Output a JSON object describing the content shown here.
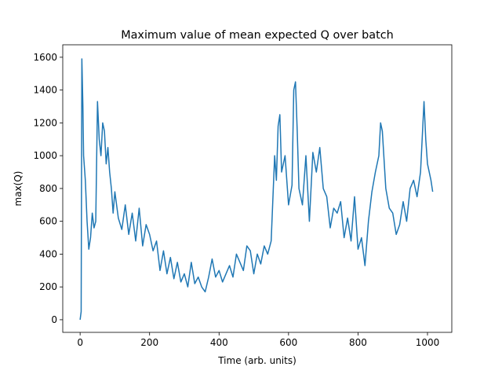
{
  "chart_data": {
    "type": "line",
    "title": "Maximum value of mean expected Q over batch",
    "x_label": "Time (arb. units)",
    "y_label": "max(Q)",
    "x": [
      0,
      3,
      5,
      8,
      10,
      15,
      20,
      25,
      30,
      35,
      40,
      45,
      50,
      55,
      60,
      65,
      70,
      75,
      80,
      85,
      90,
      95,
      100,
      110,
      120,
      130,
      140,
      150,
      160,
      170,
      180,
      190,
      200,
      210,
      220,
      230,
      240,
      250,
      260,
      270,
      280,
      290,
      300,
      310,
      320,
      330,
      340,
      350,
      360,
      370,
      380,
      390,
      400,
      410,
      420,
      430,
      440,
      450,
      460,
      470,
      480,
      490,
      500,
      510,
      520,
      530,
      540,
      550,
      560,
      565,
      570,
      575,
      580,
      590,
      600,
      610,
      615,
      620,
      625,
      630,
      640,
      650,
      660,
      670,
      680,
      690,
      700,
      710,
      720,
      730,
      740,
      750,
      760,
      770,
      780,
      790,
      800,
      810,
      820,
      830,
      840,
      850,
      860,
      865,
      870,
      880,
      890,
      900,
      910,
      920,
      930,
      940,
      950,
      960,
      970,
      980,
      990,
      995,
      1000,
      1010,
      1015
    ],
    "series": [
      {
        "name": "max(Q)",
        "color": "#1f77b4",
        "values": [
          0,
          50,
          1590,
          1300,
          1000,
          850,
          600,
          430,
          500,
          650,
          560,
          600,
          1330,
          1100,
          1000,
          1200,
          1150,
          950,
          1050,
          900,
          800,
          650,
          780,
          620,
          550,
          700,
          520,
          650,
          480,
          680,
          450,
          580,
          520,
          420,
          480,
          300,
          420,
          280,
          380,
          250,
          350,
          230,
          280,
          200,
          350,
          220,
          260,
          200,
          170,
          260,
          370,
          260,
          300,
          230,
          280,
          330,
          260,
          400,
          350,
          300,
          450,
          420,
          280,
          400,
          340,
          450,
          400,
          480,
          1000,
          850,
          1180,
          1250,
          900,
          1000,
          700,
          820,
          1400,
          1450,
          1150,
          800,
          700,
          1000,
          600,
          1020,
          900,
          1050,
          800,
          750,
          560,
          680,
          650,
          720,
          500,
          620,
          480,
          750,
          430,
          500,
          330,
          600,
          780,
          900,
          1000,
          1200,
          1150,
          800,
          680,
          650,
          520,
          580,
          720,
          600,
          800,
          850,
          750,
          900,
          1330,
          1100,
          950,
          850,
          780
        ]
      }
    ],
    "xlim": [
      -50,
      1070
    ],
    "ylim": [
      -77,
      1676
    ],
    "xticks": [
      0,
      200,
      400,
      600,
      800,
      1000
    ],
    "yticks": [
      0,
      200,
      400,
      600,
      800,
      1000,
      1200,
      1400,
      1600
    ]
  }
}
